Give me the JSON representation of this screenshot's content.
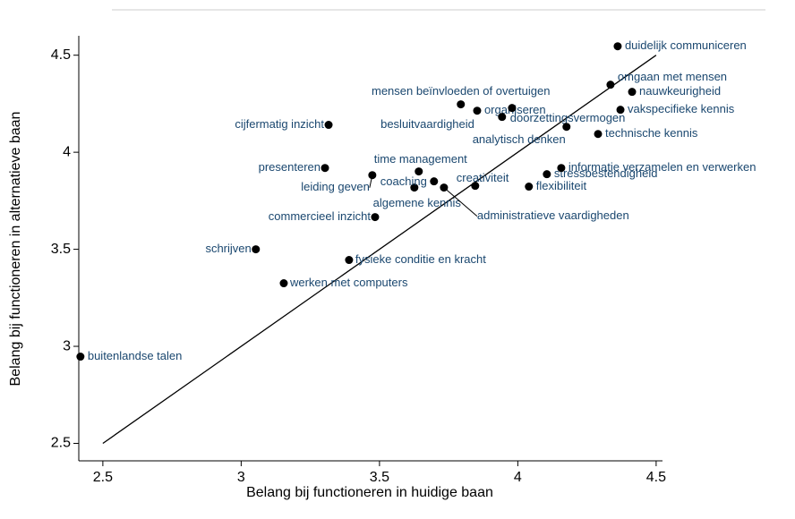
{
  "chart_data": {
    "type": "scatter",
    "xlabel": "Belang bij functioneren in huidige baan",
    "ylabel": "Belang bij functioneren in alternatieve baan",
    "labels": [
      "duidelijk communiceren",
      "omgaan met mensen",
      "nauwkeurigheid",
      "vakspecifieke kennis",
      "technische kennis",
      "mensen beïnvloeden of overtuigen",
      "organiseren",
      "doorzettingsvermogen",
      "besluitvaardigheid",
      "analytisch denken",
      "cijfermatig inzicht",
      "presenteren",
      "time management",
      "leiding geven",
      "coaching",
      "algemene kennis",
      "administratieve vaardigheden",
      "creativiteit",
      "stressbestendigheid",
      "informatie verzamelen en verwerken",
      "flexibiliteit",
      "commercieel inzicht",
      "schrijven",
      "fysieke conditie en kracht",
      "werken met computers",
      "buitenlandse talen"
    ],
    "x": [
      4.361,
      4.335,
      4.413,
      4.371,
      4.29,
      3.794,
      3.853,
      3.943,
      3.979,
      4.176,
      3.316,
      3.303,
      3.642,
      3.474,
      3.626,
      3.697,
      3.733,
      3.846,
      4.105,
      4.157,
      4.04,
      3.484,
      3.053,
      3.39,
      3.154,
      2.419
    ],
    "values": [
      4.546,
      4.348,
      4.311,
      4.219,
      4.094,
      4.247,
      4.214,
      4.182,
      4.228,
      4.131,
      4.141,
      3.919,
      3.901,
      3.882,
      3.818,
      3.85,
      3.818,
      3.827,
      3.887,
      3.919,
      3.823,
      3.666,
      3.5,
      3.445,
      3.325,
      2.947
    ],
    "color": "#000000",
    "label_color": "#1a476f",
    "reference_line": {
      "x": [
        2.5,
        4.5
      ],
      "y": [
        2.5,
        4.5
      ]
    },
    "xlim": [
      2.413,
      4.523
    ],
    "ylim": [
      2.41,
      4.6
    ],
    "xticks": [
      2.5,
      3,
      3.5,
      4,
      4.5
    ],
    "yticks": [
      2.5,
      3,
      3.5,
      4,
      4.5
    ]
  }
}
